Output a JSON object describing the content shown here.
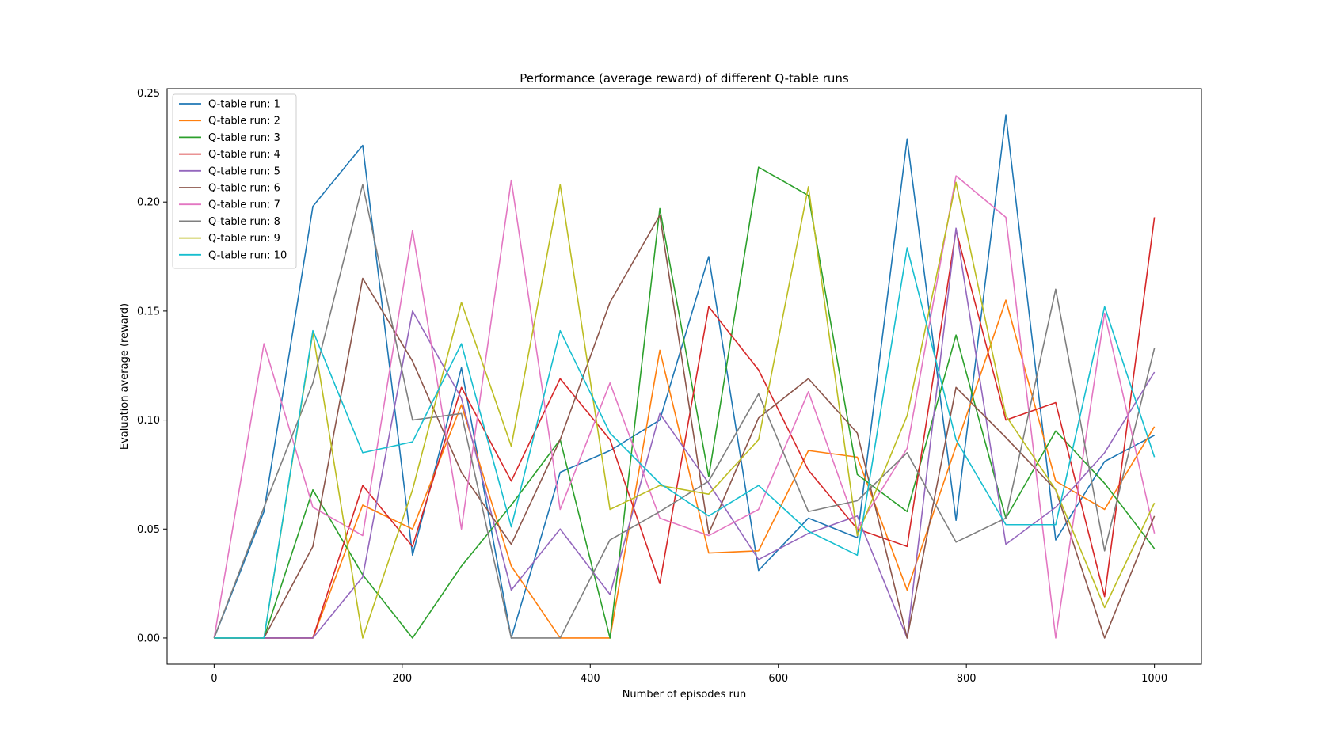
{
  "chart_data": {
    "type": "line",
    "title": "Performance (average reward) of different Q-table runs",
    "xlabel": "Number of episodes run",
    "ylabel": "Evaluation average (reward)",
    "xlim": [
      -50,
      1050
    ],
    "ylim": [
      -0.012,
      0.252
    ],
    "xticks": [
      0,
      200,
      400,
      600,
      800,
      1000
    ],
    "xtick_labels": [
      "0",
      "200",
      "400",
      "600",
      "800",
      "1000"
    ],
    "yticks": [
      0.0,
      0.05,
      0.1,
      0.15,
      0.2,
      0.25
    ],
    "ytick_labels": [
      "0.00",
      "0.05",
      "0.10",
      "0.15",
      "0.20",
      "0.25"
    ],
    "grid": false,
    "legend_position": "top-left",
    "x": [
      0,
      53,
      105,
      158,
      211,
      263,
      316,
      368,
      421,
      474,
      526,
      579,
      632,
      684,
      737,
      789,
      842,
      895,
      947,
      1000
    ],
    "series": [
      {
        "name": "Q-table run: 1",
        "color": "#1f77b4",
        "values": [
          0.0,
          0.058,
          0.198,
          0.226,
          0.038,
          0.124,
          0.0,
          0.076,
          0.086,
          0.1,
          0.175,
          0.031,
          0.055,
          0.046,
          0.229,
          0.054,
          0.24,
          0.045,
          0.081,
          0.093
        ]
      },
      {
        "name": "Q-table run: 2",
        "color": "#ff7f0e",
        "values": [
          0.0,
          0.0,
          0.0,
          0.061,
          0.05,
          0.107,
          0.033,
          0.0,
          0.0,
          0.132,
          0.039,
          0.04,
          0.086,
          0.083,
          0.022,
          0.088,
          0.155,
          0.072,
          0.059,
          0.097
        ]
      },
      {
        "name": "Q-table run: 3",
        "color": "#2ca02c",
        "values": [
          0.0,
          0.0,
          0.068,
          0.029,
          0.0,
          0.033,
          0.061,
          0.091,
          0.0,
          0.197,
          0.074,
          0.216,
          0.203,
          0.075,
          0.058,
          0.139,
          0.055,
          0.095,
          0.071,
          0.041
        ]
      },
      {
        "name": "Q-table run: 4",
        "color": "#d62728",
        "values": [
          0.0,
          0.0,
          0.0,
          0.07,
          0.042,
          0.115,
          0.072,
          0.119,
          0.091,
          0.025,
          0.152,
          0.123,
          0.077,
          0.05,
          0.042,
          0.187,
          0.1,
          0.108,
          0.019,
          0.193
        ]
      },
      {
        "name": "Q-table run: 5",
        "color": "#9467bd",
        "values": [
          0.0,
          0.0,
          0.0,
          0.028,
          0.15,
          0.11,
          0.022,
          0.05,
          0.02,
          0.103,
          0.071,
          0.036,
          0.048,
          0.056,
          0.0,
          0.188,
          0.043,
          0.06,
          0.085,
          0.122
        ]
      },
      {
        "name": "Q-table run: 6",
        "color": "#8c564b",
        "values": [
          0.0,
          0.0,
          0.042,
          0.165,
          0.127,
          0.076,
          0.043,
          0.091,
          0.154,
          0.194,
          0.048,
          0.101,
          0.119,
          0.094,
          0.0,
          0.115,
          0.092,
          0.068,
          0.0,
          0.056
        ]
      },
      {
        "name": "Q-table run: 7",
        "color": "#e377c2",
        "values": [
          0.0,
          0.135,
          0.06,
          0.047,
          0.187,
          0.05,
          0.21,
          0.059,
          0.117,
          0.055,
          0.047,
          0.059,
          0.113,
          0.05,
          0.087,
          0.212,
          0.193,
          0.0,
          0.149,
          0.048
        ]
      },
      {
        "name": "Q-table run: 8",
        "color": "#7f7f7f",
        "values": [
          0.0,
          0.06,
          0.117,
          0.208,
          0.1,
          0.103,
          0.0,
          0.0,
          0.045,
          0.058,
          0.072,
          0.112,
          0.058,
          0.063,
          0.085,
          0.044,
          0.055,
          0.16,
          0.04,
          0.133
        ]
      },
      {
        "name": "Q-table run: 9",
        "color": "#bcbd22",
        "values": [
          0.0,
          0.0,
          0.14,
          0.0,
          0.068,
          0.154,
          0.088,
          0.208,
          0.059,
          0.07,
          0.066,
          0.091,
          0.207,
          0.047,
          0.102,
          0.209,
          0.102,
          0.068,
          0.014,
          0.062
        ]
      },
      {
        "name": "Q-table run: 10",
        "color": "#17becf",
        "values": [
          0.0,
          0.0,
          0.141,
          0.085,
          0.09,
          0.135,
          0.051,
          0.141,
          0.094,
          0.071,
          0.056,
          0.07,
          0.049,
          0.038,
          0.179,
          0.091,
          0.052,
          0.052,
          0.152,
          0.083
        ]
      }
    ]
  }
}
